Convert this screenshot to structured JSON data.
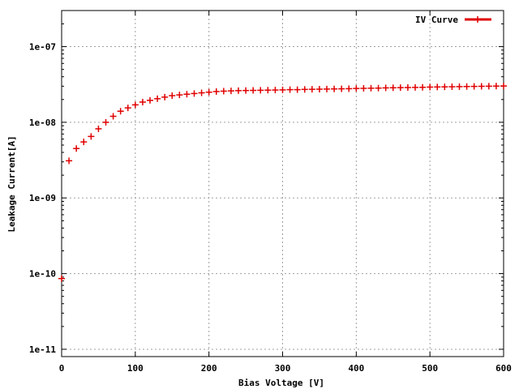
{
  "chart_data": {
    "type": "scatter",
    "title": "",
    "xlabel": "Bias Voltage [V]",
    "ylabel": "Leakage Current[A]",
    "xlim": [
      0,
      600
    ],
    "ylim": [
      8e-12,
      3e-07
    ],
    "yscale": "log",
    "grid": true,
    "legend_position": "top-right",
    "x_ticks": [
      {
        "value": 0,
        "label": "0"
      },
      {
        "value": 100,
        "label": "100"
      },
      {
        "value": 200,
        "label": "200"
      },
      {
        "value": 300,
        "label": "300"
      },
      {
        "value": 400,
        "label": "400"
      },
      {
        "value": 500,
        "label": "500"
      },
      {
        "value": 600,
        "label": "600"
      }
    ],
    "y_ticks": [
      {
        "value": 1e-11,
        "label": "1e-11"
      },
      {
        "value": 1e-10,
        "label": "1e-10"
      },
      {
        "value": 1e-09,
        "label": "1e-09"
      },
      {
        "value": 1e-08,
        "label": "1e-08"
      },
      {
        "value": 1e-07,
        "label": "1e-07"
      }
    ],
    "series": [
      {
        "name": "IV Curve",
        "color": "#e00000",
        "marker": "plus",
        "x": [
          0,
          10,
          20,
          30,
          40,
          50,
          60,
          70,
          80,
          90,
          100,
          110,
          120,
          130,
          140,
          150,
          160,
          170,
          180,
          190,
          200,
          210,
          220,
          230,
          240,
          250,
          260,
          270,
          280,
          290,
          300,
          310,
          320,
          330,
          340,
          350,
          360,
          370,
          380,
          390,
          400,
          410,
          420,
          430,
          440,
          450,
          460,
          470,
          480,
          490,
          500,
          510,
          520,
          530,
          540,
          550,
          560,
          570,
          580,
          590,
          600
        ],
        "y": [
          8.6e-11,
          3.1e-09,
          4.5e-09,
          5.5e-09,
          6.5e-09,
          8.2e-09,
          1e-08,
          1.2e-08,
          1.4e-08,
          1.55e-08,
          1.7e-08,
          1.85e-08,
          1.95e-08,
          2.05e-08,
          2.15e-08,
          2.25e-08,
          2.3e-08,
          2.35e-08,
          2.4e-08,
          2.45e-08,
          2.5e-08,
          2.55e-08,
          2.58e-08,
          2.6e-08,
          2.62e-08,
          2.63e-08,
          2.64e-08,
          2.65e-08,
          2.66e-08,
          2.67e-08,
          2.68e-08,
          2.7e-08,
          2.7e-08,
          2.72e-08,
          2.73e-08,
          2.74e-08,
          2.75e-08,
          2.76e-08,
          2.77e-08,
          2.78e-08,
          2.8e-08,
          2.81e-08,
          2.82e-08,
          2.83e-08,
          2.85e-08,
          2.86e-08,
          2.87e-08,
          2.88e-08,
          2.89e-08,
          2.9e-08,
          2.92e-08,
          2.93e-08,
          2.94e-08,
          2.95e-08,
          2.96e-08,
          2.97e-08,
          2.98e-08,
          2.99e-08,
          3e-08,
          3.01e-08,
          3.02e-08
        ]
      }
    ]
  }
}
